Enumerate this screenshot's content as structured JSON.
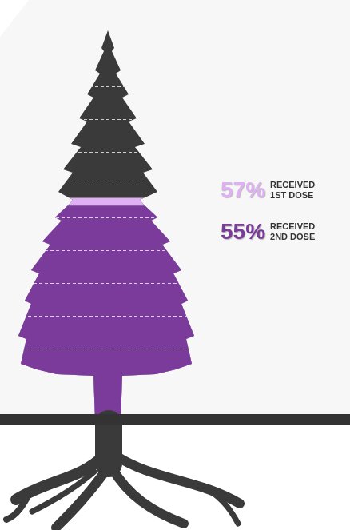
{
  "chart_data": {
    "type": "pictograph",
    "categories": [
      null
    ],
    "ylim": [
      0,
      100
    ],
    "tick_labels": false,
    "grid": false,
    "data_labels": true,
    "series": [
      {
        "name": "RECEIVED 1ST DOSE",
        "color": "#e0b0f4",
        "values": [
          57
        ],
        "value_labels": [
          "57%"
        ]
      },
      {
        "name": "RECEIVED 2ND DOSE",
        "color": "#7a3b9a",
        "values": [
          55
        ],
        "value_labels": [
          "55%"
        ]
      }
    ]
  }
}
